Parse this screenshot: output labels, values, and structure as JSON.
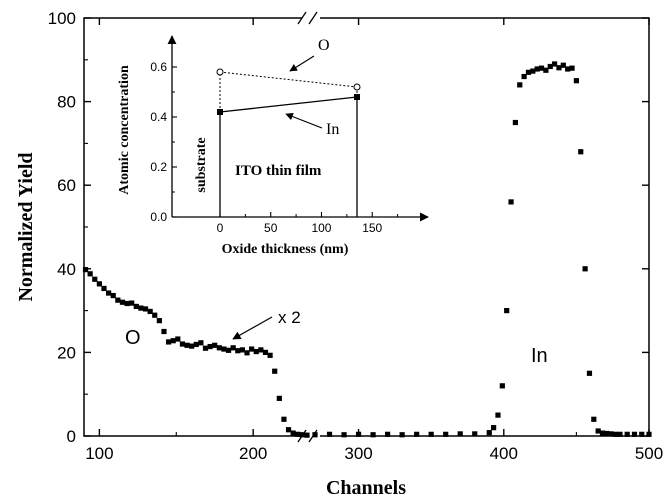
{
  "chart_data": [
    {
      "id": "main",
      "type": "scatter",
      "xlabel": "Channels",
      "ylabel": "Normalized Yield",
      "xlim": [
        90,
        500
      ],
      "ylim": [
        0,
        100
      ],
      "axis_break_after": 235,
      "axis_break_before": 270,
      "xticks": [
        100,
        200,
        300,
        400,
        500
      ],
      "yticks": [
        0,
        20,
        40,
        60,
        80,
        100
      ],
      "grid": false,
      "marker": "filled-square",
      "annotations": {
        "oxygen": "O",
        "multiplier": "x 2",
        "indium": "In"
      },
      "series": [
        {
          "name": "O",
          "x": [
            91,
            94,
            97,
            100,
            103,
            106,
            109,
            112,
            115,
            118,
            121,
            124,
            127,
            130,
            133,
            136,
            139,
            142,
            145,
            148,
            151,
            154,
            157,
            160,
            163,
            166,
            169,
            172,
            175,
            178,
            181,
            184,
            187,
            190,
            193,
            196,
            199,
            202,
            205,
            208,
            211,
            214,
            217,
            220,
            223,
            226,
            229,
            232,
            235
          ],
          "y": [
            39.8,
            38.8,
            37.5,
            36.4,
            35.3,
            34.2,
            33.6,
            32.5,
            32.0,
            31.7,
            31.8,
            31.0,
            30.6,
            30.4,
            29.8,
            28.9,
            27.6,
            25.0,
            22.5,
            22.8,
            23.2,
            22.0,
            21.7,
            21.5,
            21.9,
            22.3,
            21.0,
            21.4,
            21.7,
            21.1,
            20.8,
            20.5,
            21.1,
            20.4,
            20.6,
            19.9,
            20.8,
            20.2,
            20.6,
            20.0,
            19.3,
            15.5,
            9.0,
            4.0,
            1.5,
            0.7,
            0.4,
            0.3,
            0.2
          ]
        },
        {
          "name": "In",
          "x": [
            270,
            280,
            290,
            300,
            310,
            320,
            330,
            340,
            350,
            360,
            370,
            380,
            390,
            393,
            396,
            399,
            402,
            405,
            408,
            411,
            414,
            417,
            420,
            423,
            426,
            429,
            432,
            435,
            438,
            441,
            444,
            447,
            450,
            453,
            456,
            459,
            462,
            465,
            468,
            471,
            474,
            477,
            480,
            485,
            490,
            495,
            500
          ],
          "y": [
            0.3,
            0.4,
            0.3,
            0.4,
            0.3,
            0.4,
            0.3,
            0.4,
            0.4,
            0.4,
            0.5,
            0.5,
            0.8,
            2.0,
            5.0,
            12.0,
            30.0,
            56.0,
            75.0,
            84.0,
            86.0,
            87.0,
            87.3,
            87.8,
            88.0,
            87.5,
            88.4,
            89.0,
            88.1,
            88.7,
            87.8,
            88.0,
            85.0,
            68.0,
            40.0,
            15.0,
            4.0,
            1.2,
            0.7,
            0.6,
            0.5,
            0.4,
            0.4,
            0.4,
            0.4,
            0.4,
            0.4
          ]
        }
      ]
    },
    {
      "id": "inset",
      "type": "line",
      "title": "ITO thin film",
      "xlabel": "Oxide thickness (nm)",
      "ylabel": "Atomic concentration",
      "xlim": [
        -45,
        195
      ],
      "ylim": [
        0,
        0.7
      ],
      "xticks": [
        0,
        50,
        100,
        150
      ],
      "yticks": [
        0.0,
        0.2,
        0.4,
        0.6
      ],
      "region_label": "substrate",
      "series": [
        {
          "name": "O",
          "x": [
            0,
            135
          ],
          "y": [
            0.58,
            0.52
          ],
          "style": "dotted",
          "marker": "open-circle"
        },
        {
          "name": "In",
          "x": [
            0,
            135
          ],
          "y": [
            0.42,
            0.48
          ],
          "style": "solid",
          "marker": "filled-square"
        }
      ]
    }
  ]
}
